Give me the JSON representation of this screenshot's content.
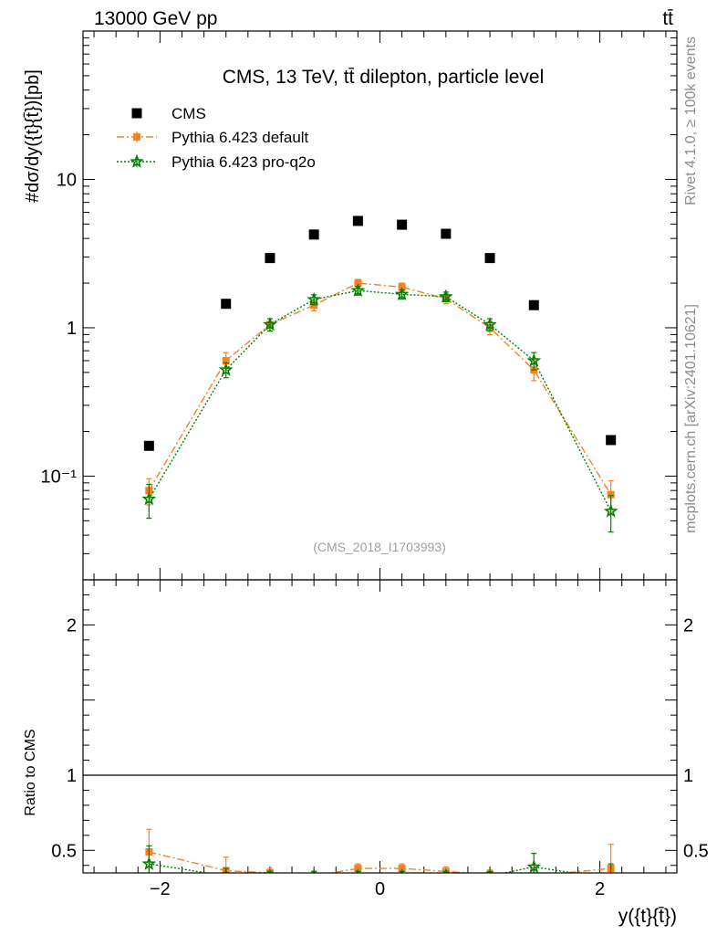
{
  "header": {
    "left": "13000 GeV pp",
    "right": "tt̄"
  },
  "side_labels": {
    "rivet": "Rivet 4.1.0, ≥ 100k events",
    "mcplots": "mcplots.cern.ch [arXiv:2401.10621]"
  },
  "chart_data": [
    {
      "type": "scatter",
      "title": "CMS, 13 TeV, tt̄ dilepton, particle level",
      "watermark": "(CMS_2018_I1703993)",
      "ylabel": "#dσ/dy({t}{t̄})[pb]",
      "yscale": "log",
      "ylim": [
        0.02,
        100
      ],
      "xlim": [
        -2.7,
        2.7
      ],
      "y_tick_labels": [
        {
          "value": 0.1,
          "label": "10⁻¹"
        },
        {
          "value": 1,
          "label": "1"
        },
        {
          "value": 10,
          "label": "10"
        }
      ],
      "legend_position": "top-left",
      "series": [
        {
          "name": "CMS",
          "color": "#000000",
          "marker": "square",
          "x": [
            -2.1,
            -1.4,
            -1.0,
            -0.6,
            -0.2,
            0.2,
            0.6,
            1.0,
            1.4,
            2.1
          ],
          "y": [
            0.16,
            1.45,
            2.95,
            4.25,
            5.25,
            4.95,
            4.3,
            2.95,
            1.42,
            0.175
          ]
        },
        {
          "name": "Pythia 6.423 default",
          "color": "#f58220",
          "marker": "square",
          "line": "dash-dot",
          "x": [
            -2.1,
            -1.4,
            -1.0,
            -0.6,
            -0.2,
            0.2,
            0.6,
            1.0,
            1.4,
            2.1
          ],
          "y": [
            0.08,
            0.6,
            1.05,
            1.42,
            2.0,
            1.88,
            1.57,
            1.0,
            0.52,
            0.075
          ],
          "err": [
            0.016,
            0.08,
            0.1,
            0.12,
            0.12,
            0.12,
            0.12,
            0.1,
            0.08,
            0.018
          ]
        },
        {
          "name": "Pythia 6.423 pro-q2o",
          "color": "#008000",
          "marker": "star",
          "line": "dotted",
          "x": [
            -2.1,
            -1.4,
            -1.0,
            -0.6,
            -0.2,
            0.2,
            0.6,
            1.0,
            1.4,
            2.1
          ],
          "y": [
            0.07,
            0.52,
            1.05,
            1.55,
            1.78,
            1.68,
            1.62,
            1.05,
            0.6,
            0.058
          ],
          "err": [
            0.018,
            0.06,
            0.1,
            0.12,
            0.12,
            0.12,
            0.12,
            0.1,
            0.08,
            0.016
          ]
        }
      ]
    },
    {
      "type": "line",
      "ylabel": "Ratio to CMS",
      "xlabel": "y({t}{t̄})",
      "ylim": [
        0.35,
        2.3
      ],
      "xlim": [
        -2.7,
        2.7
      ],
      "x_tick_labels": [
        {
          "value": -2,
          "label": "−2"
        },
        {
          "value": 0,
          "label": "0"
        },
        {
          "value": 2,
          "label": "2"
        }
      ],
      "y_tick_labels": [
        {
          "value": 0.5,
          "label": "0.5"
        },
        {
          "value": 1,
          "label": "1"
        },
        {
          "value": 2,
          "label": "2"
        }
      ],
      "reference_line": 1,
      "series": [
        {
          "name": "Pythia 6.423 default",
          "color": "#f58220",
          "x": [
            -2.1,
            -1.4,
            -1.0,
            -0.6,
            -0.2,
            0.2,
            0.6,
            1.0,
            1.4,
            2.1
          ],
          "y": [
            0.49,
            0.365,
            0.35,
            0.33,
            0.38,
            0.38,
            0.36,
            0.34,
            0.33,
            0.38
          ],
          "err": [
            0.15,
            0.09,
            0.03,
            0.03,
            0.03,
            0.03,
            0.03,
            0.03,
            0.05,
            0.16
          ]
        },
        {
          "name": "Pythia 6.423 pro-q2o",
          "color": "#008000",
          "x": [
            -2.1,
            -1.4,
            -1.0,
            -0.6,
            -0.2,
            0.2,
            0.6,
            1.0,
            1.4,
            2.1
          ],
          "y": [
            0.41,
            0.33,
            0.33,
            0.33,
            0.33,
            0.33,
            0.33,
            0.33,
            0.39,
            0.31
          ],
          "err": [
            0.12,
            0.05,
            0.03,
            0.03,
            0.03,
            0.03,
            0.03,
            0.03,
            0.09,
            0.1
          ]
        }
      ]
    }
  ]
}
